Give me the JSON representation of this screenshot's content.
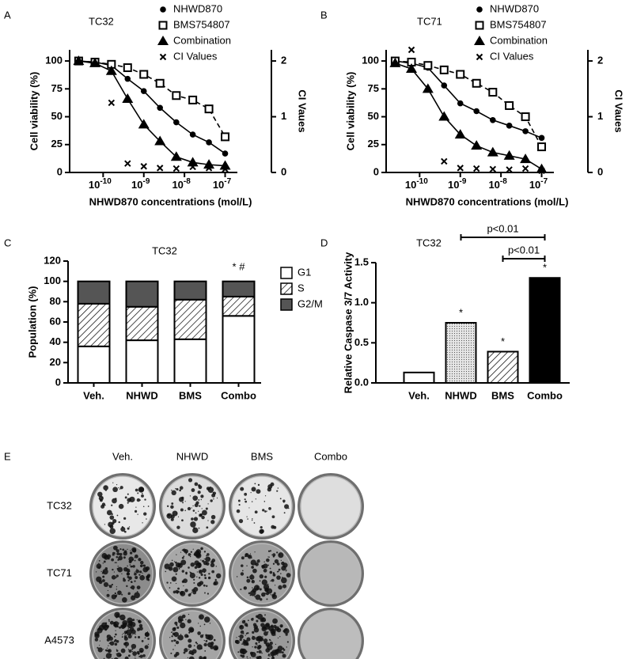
{
  "chart_data": [
    {
      "label": "A",
      "type": "scatter",
      "title": "TC32",
      "xlabel": "NHWD870 concentrations (mol/L)",
      "ylabel": "Cell viability (%)",
      "y2label": "CI Vaues",
      "xscale": "log",
      "x": [
        2.5e-11,
        6.3e-11,
        1.6e-10,
        4e-10,
        1e-09,
        2.5e-09,
        6.3e-09,
        1.6e-08,
        4e-08,
        1e-07
      ],
      "xlim": [
        1.5e-11,
        2e-07
      ],
      "xticks": [
        {
          "value": 1e-10,
          "label": "10",
          "exponent": "-10"
        },
        {
          "value": 1e-09,
          "label": "10",
          "exponent": "-9"
        },
        {
          "value": 1e-08,
          "label": "10",
          "exponent": "-8"
        },
        {
          "value": 1e-07,
          "label": "10",
          "exponent": "-7"
        }
      ],
      "ylim": [
        0,
        110
      ],
      "yticks": [
        0,
        25,
        50,
        75,
        100
      ],
      "y2lim": [
        0,
        2.2
      ],
      "y2ticks": [
        0,
        1,
        2
      ],
      "legend": "top-right",
      "series": [
        {
          "name": "NHWD870",
          "color": "#000000",
          "marker": "circle",
          "line": "solid",
          "values": [
            100,
            99,
            96,
            84,
            73,
            58,
            45,
            34,
            27,
            17
          ]
        },
        {
          "name": "BMS754807",
          "color": "#000000",
          "marker": "open-square",
          "line": "dashed",
          "values": [
            100,
            99,
            97,
            94,
            88,
            80,
            69,
            65,
            57,
            32
          ]
        },
        {
          "name": "Combination",
          "color": "#000000",
          "marker": "triangle",
          "line": "solid",
          "values": [
            100,
            98,
            91,
            66,
            43,
            28,
            14,
            9,
            7,
            6
          ]
        },
        {
          "name": "CI Values",
          "color": "#000000",
          "marker": "x",
          "axis": "y2",
          "x": [
            1.6e-10,
            4e-10,
            1e-09,
            2.5e-09,
            6.3e-09,
            1.6e-08,
            4e-08,
            1e-07
          ],
          "values": [
            1.25,
            0.16,
            0.11,
            0.08,
            0.07,
            0.1,
            0.08,
            0.06
          ]
        }
      ]
    },
    {
      "label": "B",
      "type": "scatter",
      "title": "TC71",
      "xlabel": "NHWD870 concentrations (mol/L)",
      "ylabel": "Cell viability (%)",
      "y2label": "CI Vaues",
      "xscale": "log",
      "x": [
        2.5e-11,
        6.3e-11,
        1.6e-10,
        4e-10,
        1e-09,
        2.5e-09,
        6.3e-09,
        1.6e-08,
        4e-08,
        1e-07
      ],
      "xlim": [
        1.5e-11,
        2e-07
      ],
      "xticks": [
        {
          "value": 1e-10,
          "label": "10",
          "exponent": "-10"
        },
        {
          "value": 1e-09,
          "label": "10",
          "exponent": "-9"
        },
        {
          "value": 1e-08,
          "label": "10",
          "exponent": "-8"
        },
        {
          "value": 1e-07,
          "label": "10",
          "exponent": "-7"
        }
      ],
      "ylim": [
        0,
        110
      ],
      "yticks": [
        0,
        25,
        50,
        75,
        100
      ],
      "y2lim": [
        0,
        2.2
      ],
      "y2ticks": [
        0,
        1,
        2
      ],
      "legend": "top-right",
      "series": [
        {
          "name": "NHWD870",
          "color": "#000000",
          "marker": "circle",
          "line": "solid",
          "values": [
            100,
            98,
            94,
            78,
            62,
            55,
            47,
            42,
            37,
            31
          ]
        },
        {
          "name": "BMS754807",
          "color": "#000000",
          "marker": "open-square",
          "line": "dashed",
          "values": [
            100,
            99,
            96,
            92,
            88,
            80,
            72,
            60,
            50,
            23
          ]
        },
        {
          "name": "Combination",
          "color": "#000000",
          "marker": "triangle",
          "line": "solid",
          "values": [
            98,
            93,
            75,
            50,
            34,
            24,
            18,
            15,
            12,
            3
          ]
        },
        {
          "name": "CI Values",
          "color": "#000000",
          "marker": "x",
          "axis": "y2",
          "x": [
            6.3e-11,
            4e-10,
            1e-09,
            2.5e-09,
            6.3e-09,
            1.6e-08,
            4e-08,
            1e-07
          ],
          "values": [
            2.2,
            0.2,
            0.08,
            0.07,
            0.06,
            0.05,
            0.07,
            0.03
          ]
        }
      ]
    },
    {
      "label": "C",
      "type": "stacked_bar",
      "title": "TC32",
      "ylabel": "Population (%)",
      "categories": [
        "Veh.",
        "NHWD",
        "BMS",
        "Combo"
      ],
      "ylim": [
        0,
        120
      ],
      "yticks": [
        0,
        20,
        40,
        60,
        80,
        100,
        120
      ],
      "legend": "right",
      "series": [
        {
          "name": "G1",
          "color": "#ffffff",
          "values": [
            36,
            42,
            43,
            66
          ]
        },
        {
          "name": "S",
          "color": "#ffffff",
          "pattern": "hatch",
          "values": [
            42,
            33,
            39,
            19
          ]
        },
        {
          "name": "G2/M",
          "color": "#555555",
          "values": [
            22,
            25,
            18,
            15
          ]
        }
      ],
      "annotations": [
        {
          "category": "Combo",
          "text": "*  #"
        }
      ]
    },
    {
      "label": "D",
      "type": "bar",
      "title": "TC32",
      "ylabel": "Relative Caspase 3/7 Activity",
      "categories": [
        "Veh.",
        "NHWD",
        "BMS",
        "Combo"
      ],
      "values": [
        0.13,
        0.75,
        0.39,
        1.31
      ],
      "colors": [
        "#ffffff",
        "#d8d8d8",
        "#ffffff",
        "#000000"
      ],
      "patterns": [
        "none",
        "dots",
        "hatch",
        "none"
      ],
      "ylim": [
        0,
        1.5
      ],
      "yticks": [
        {
          "value": 0,
          "label": "0.0"
        },
        {
          "value": 0.5,
          "label": "0.5"
        },
        {
          "value": 1,
          "label": "1.0"
        },
        {
          "value": 1.5,
          "label": "1.5"
        }
      ],
      "annotations": [
        {
          "category": "NHWD",
          "text": "*"
        },
        {
          "category": "BMS",
          "text": "*"
        },
        {
          "category": "Combo",
          "text": "*"
        }
      ],
      "brackets": [
        {
          "from": "NHWD",
          "to": "Combo",
          "text": "p<0.01"
        },
        {
          "from": "BMS",
          "to": "Combo",
          "text": "p<0.01"
        }
      ]
    }
  ],
  "colony_assay": {
    "label": "E",
    "columns": [
      "Veh.",
      "NHWD",
      "BMS",
      "Combo"
    ],
    "rows": [
      "TC32",
      "TC71",
      "A4573"
    ]
  }
}
